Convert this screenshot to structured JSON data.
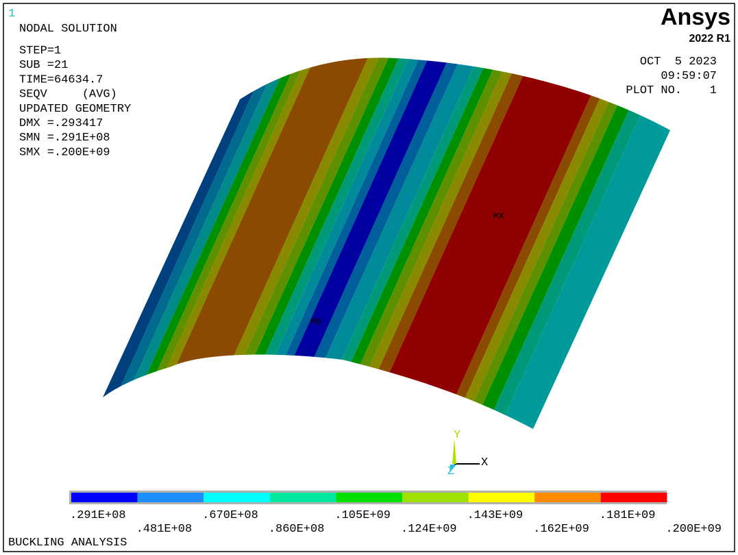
{
  "window_number": "1",
  "logo": {
    "name": "Ansys",
    "version": "2022 R1"
  },
  "info": {
    "lines": [
      "NODAL SOLUTION",
      "STEP=1",
      "SUB =21",
      "TIME=64634.7",
      "SEQV     (AVG)",
      "UPDATED GEOMETRY",
      "DMX =.293417",
      "SMN =.291E+08",
      "SMX =.200E+09"
    ]
  },
  "timestamp": {
    "date": "OCT  5 2023",
    "time": "09:59:07",
    "plot_no": "PLOT NO.    1"
  },
  "markers": {
    "max": "MX",
    "min": "MN"
  },
  "triad": {
    "x": "X",
    "y": "Y",
    "z": "Z"
  },
  "legend": {
    "colors": [
      "#0000ff",
      "#1e8fff",
      "#00ffff",
      "#00e8a0",
      "#00e000",
      "#a0e000",
      "#ffff00",
      "#ff8c00",
      "#ff0000"
    ],
    "labels": [
      ".291E+08",
      ".481E+08",
      ".670E+08",
      ".860E+08",
      ".105E+09",
      ".124E+09",
      ".143E+09",
      ".162E+09",
      ".181E+09",
      ".200E+09"
    ]
  },
  "footer": "BUCKLING ANALYSIS"
}
